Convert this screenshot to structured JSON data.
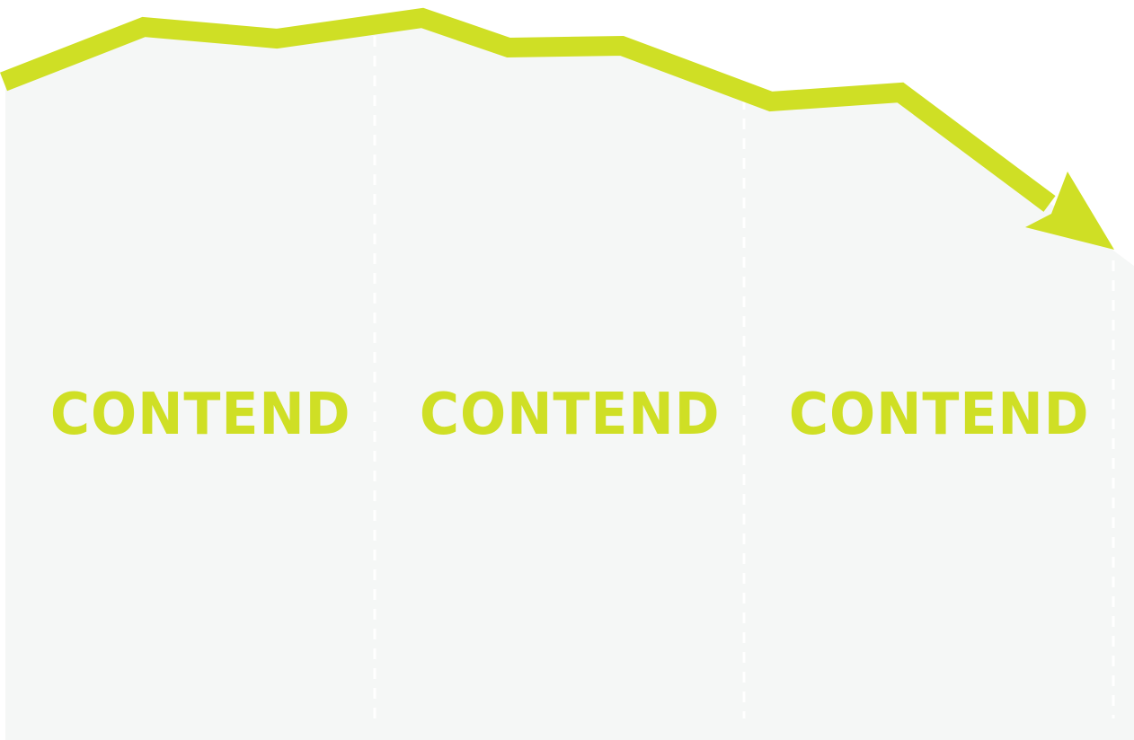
{
  "colors": {
    "accent": "#cfdf25",
    "panel": "#f5f7f6",
    "divider": "#ffffff",
    "background": "#ffffff"
  },
  "trend_direction": "down",
  "columns": [
    {
      "label": "CONTEND"
    },
    {
      "label": "CONTEND"
    },
    {
      "label": "CONTEND"
    }
  ]
}
